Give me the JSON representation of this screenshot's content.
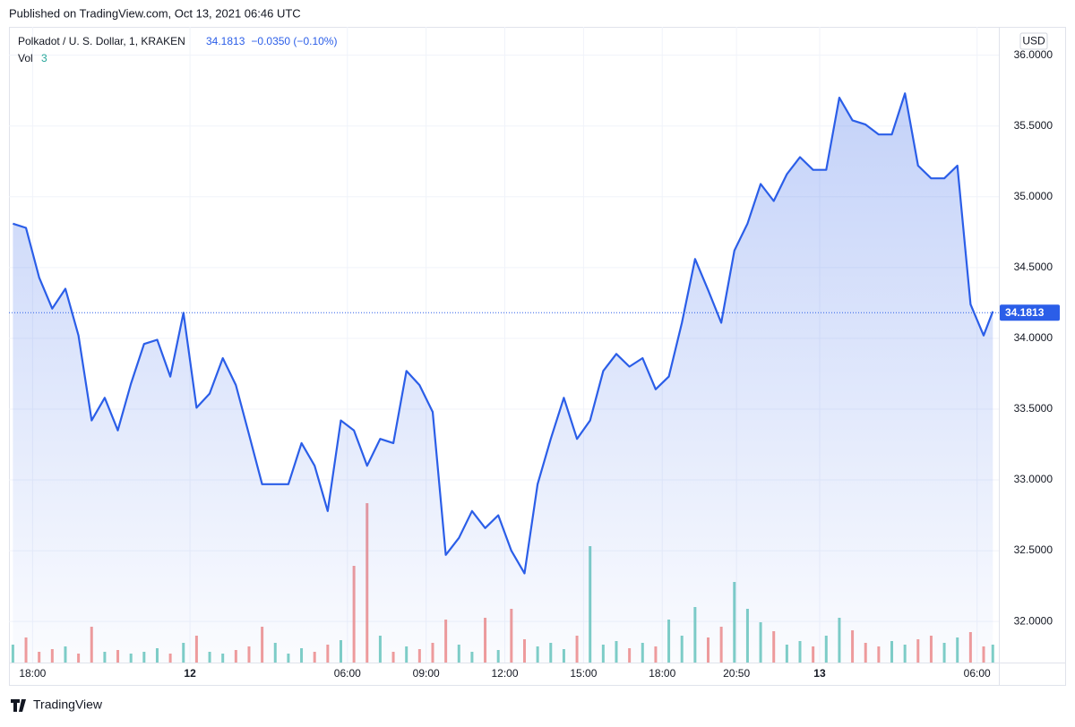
{
  "chart_data": {
    "type": "area",
    "published": "Published on TradingView.com, Oct 13, 2021 06:46 UTC",
    "symbol": "Polkadot / U. S. Dollar, 1, KRAKEN",
    "last_price": 34.1813,
    "change": "−0.0350 (−0.10%)",
    "volume_label": "Vol",
    "volume_last": 3,
    "currency": "USD",
    "brand": "TradingView",
    "color": "#2b5ee8",
    "up_color": "#7fcfc6",
    "down_color": "#f29c9a",
    "grid": true,
    "x": [
      17.25,
      17.75,
      18.25,
      18.75,
      19.25,
      19.75,
      20.25,
      20.75,
      21.25,
      21.75,
      22.25,
      22.75,
      23.25,
      23.75,
      24.25,
      24.75,
      25.25,
      25.75,
      26.25,
      26.75,
      27.25,
      27.75,
      28.25,
      28.75,
      29.25,
      29.75,
      30.25,
      30.75,
      31.25,
      31.75,
      32.25,
      32.75,
      33.25,
      33.75,
      34.25,
      34.75,
      35.25,
      35.75,
      36.25,
      36.75,
      37.25,
      37.75,
      38.25,
      38.75,
      39.25,
      39.75,
      40.25,
      40.75,
      41.25,
      41.75,
      42.25,
      42.75,
      43.25,
      43.75,
      44.25,
      44.75,
      45.25,
      45.75,
      46.25,
      46.75,
      47.25,
      47.75,
      48.25,
      48.75,
      49.25,
      49.75,
      50.25,
      50.75,
      51.25,
      51.75,
      52.25,
      52.75,
      53.25,
      53.75,
      54.25,
      54.6
    ],
    "values": [
      34.81,
      34.78,
      34.43,
      34.21,
      34.35,
      34.02,
      33.42,
      33.58,
      33.35,
      33.68,
      33.96,
      33.99,
      33.73,
      34.18,
      33.51,
      33.61,
      33.86,
      33.67,
      33.32,
      32.97,
      32.97,
      32.97,
      33.26,
      33.1,
      32.78,
      33.42,
      33.35,
      33.1,
      33.29,
      33.26,
      33.77,
      33.67,
      33.48,
      32.47,
      32.59,
      32.78,
      32.66,
      32.75,
      32.5,
      32.34,
      32.97,
      33.29,
      33.58,
      33.29,
      33.42,
      33.77,
      33.89,
      33.8,
      33.86,
      33.64,
      33.73,
      34.11,
      34.56,
      34.34,
      34.11,
      34.62,
      34.81,
      35.09,
      34.97,
      35.16,
      35.28,
      35.19,
      35.19,
      35.7,
      35.54,
      35.51,
      35.44,
      35.44,
      35.73,
      35.22,
      35.13,
      35.13,
      35.22,
      34.24,
      34.02,
      34.19
    ],
    "volume": [
      20,
      28,
      12,
      15,
      18,
      10,
      40,
      12,
      14,
      10,
      12,
      16,
      10,
      22,
      30,
      12,
      10,
      14,
      18,
      40,
      22,
      10,
      16,
      12,
      20,
      25,
      108,
      178,
      30,
      12,
      18,
      15,
      22,
      48,
      20,
      12,
      50,
      14,
      60,
      26,
      18,
      22,
      15,
      30,
      130,
      20,
      24,
      16,
      22,
      18,
      48,
      30,
      62,
      28,
      40,
      90,
      60,
      45,
      35,
      20,
      24,
      18,
      30,
      50,
      36,
      22,
      18,
      24,
      20,
      26,
      30,
      22,
      28,
      34,
      18,
      20
    ],
    "volume_lim": [
      0,
      710
    ],
    "xlim": [
      17.1,
      54.83
    ],
    "ylim": [
      31.71,
      36.2
    ],
    "xticks": [
      {
        "value": 18,
        "label": "18:00"
      },
      {
        "value": 24,
        "label": "12"
      },
      {
        "value": 30,
        "label": "06:00"
      },
      {
        "value": 33,
        "label": "09:00"
      },
      {
        "value": 36,
        "label": "12:00"
      },
      {
        "value": 39,
        "label": "15:00"
      },
      {
        "value": 42,
        "label": "18:00"
      },
      {
        "value": 44.83,
        "label": "20:50"
      },
      {
        "value": 48,
        "label": "13"
      },
      {
        "value": 54,
        "label": "06:00"
      }
    ],
    "yticks": [
      {
        "value": 32,
        "label": "32.0000"
      },
      {
        "value": 32.5,
        "label": "32.5000"
      },
      {
        "value": 33,
        "label": "33.0000"
      },
      {
        "value": 33.5,
        "label": "33.5000"
      },
      {
        "value": 34,
        "label": "34.0000"
      },
      {
        "value": 34.5,
        "label": "34.5000"
      },
      {
        "value": 35,
        "label": "35.0000"
      },
      {
        "value": 35.5,
        "label": "35.5000"
      },
      {
        "value": 36,
        "label": "36.0000"
      }
    ]
  }
}
